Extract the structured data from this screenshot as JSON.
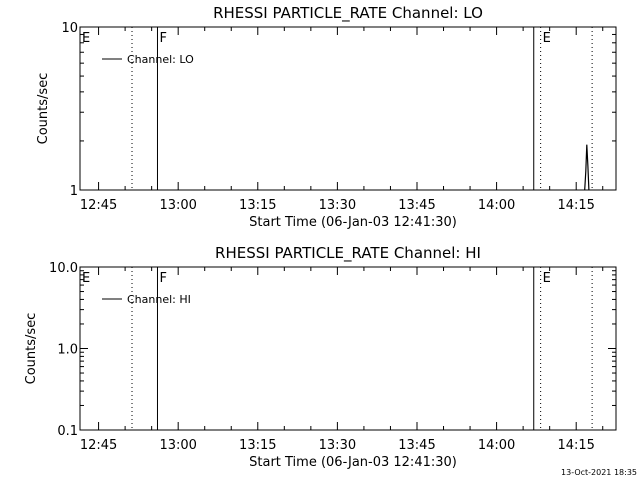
{
  "chart_data": [
    {
      "type": "line",
      "title": "RHESSI PARTICLE_RATE Channel: LO",
      "xlabel": "Start Time (06-Jan-03 12:41:30)",
      "ylabel": "Counts/sec",
      "yscale": "log",
      "ylim": [
        1,
        10
      ],
      "y_ticks": [
        "1",
        "10"
      ],
      "xlim": [
        "12:41:30",
        "14:22:30"
      ],
      "x_ticks": [
        "12:45",
        "13:00",
        "13:15",
        "13:30",
        "13:45",
        "14:00",
        "14:15"
      ],
      "x_tick_minutes": [
        45,
        60,
        75,
        90,
        105,
        120,
        135
      ],
      "legend": {
        "label": "Channel: LO",
        "position": "top-left"
      },
      "vlines": [
        {
          "time_min": 51.3,
          "style": "dotted"
        },
        {
          "time_min": 56.1,
          "style": "solid",
          "label": "F"
        },
        {
          "time_min": 127.0,
          "style": "solid"
        },
        {
          "time_min": 128.3,
          "style": "dotted",
          "label": "E"
        },
        {
          "time_min": 138.0,
          "style": "dotted"
        }
      ],
      "start_label": "E",
      "series": [
        {
          "name": "Channel: LO",
          "values": [
            [
              136.6,
              1.0
            ],
            [
              136.8,
              1.3
            ],
            [
              137.0,
              1.9
            ],
            [
              137.2,
              1.4
            ],
            [
              137.4,
              1.0
            ]
          ]
        }
      ]
    },
    {
      "type": "line",
      "title": "RHESSI PARTICLE_RATE Channel: HI",
      "xlabel": "Start Time (06-Jan-03 12:41:30)",
      "ylabel": "Counts/sec",
      "yscale": "log",
      "ylim": [
        0.1,
        10
      ],
      "y_ticks": [
        "0.1",
        "1.0",
        "10.0"
      ],
      "xlim": [
        "12:41:30",
        "14:22:30"
      ],
      "x_ticks": [
        "12:45",
        "13:00",
        "13:15",
        "13:30",
        "13:45",
        "14:00",
        "14:15"
      ],
      "x_tick_minutes": [
        45,
        60,
        75,
        90,
        105,
        120,
        135
      ],
      "legend": {
        "label": "Channel: HI",
        "position": "top-left"
      },
      "vlines": [
        {
          "time_min": 51.3,
          "style": "dotted"
        },
        {
          "time_min": 56.1,
          "style": "solid",
          "label": "F"
        },
        {
          "time_min": 127.0,
          "style": "solid"
        },
        {
          "time_min": 128.3,
          "style": "dotted",
          "label": "E"
        },
        {
          "time_min": 138.0,
          "style": "dotted"
        }
      ],
      "start_label": "E",
      "series": [
        {
          "name": "Channel: HI",
          "values": []
        }
      ]
    }
  ],
  "footer": {
    "timestamp": "13-Oct-2021 18:35"
  }
}
